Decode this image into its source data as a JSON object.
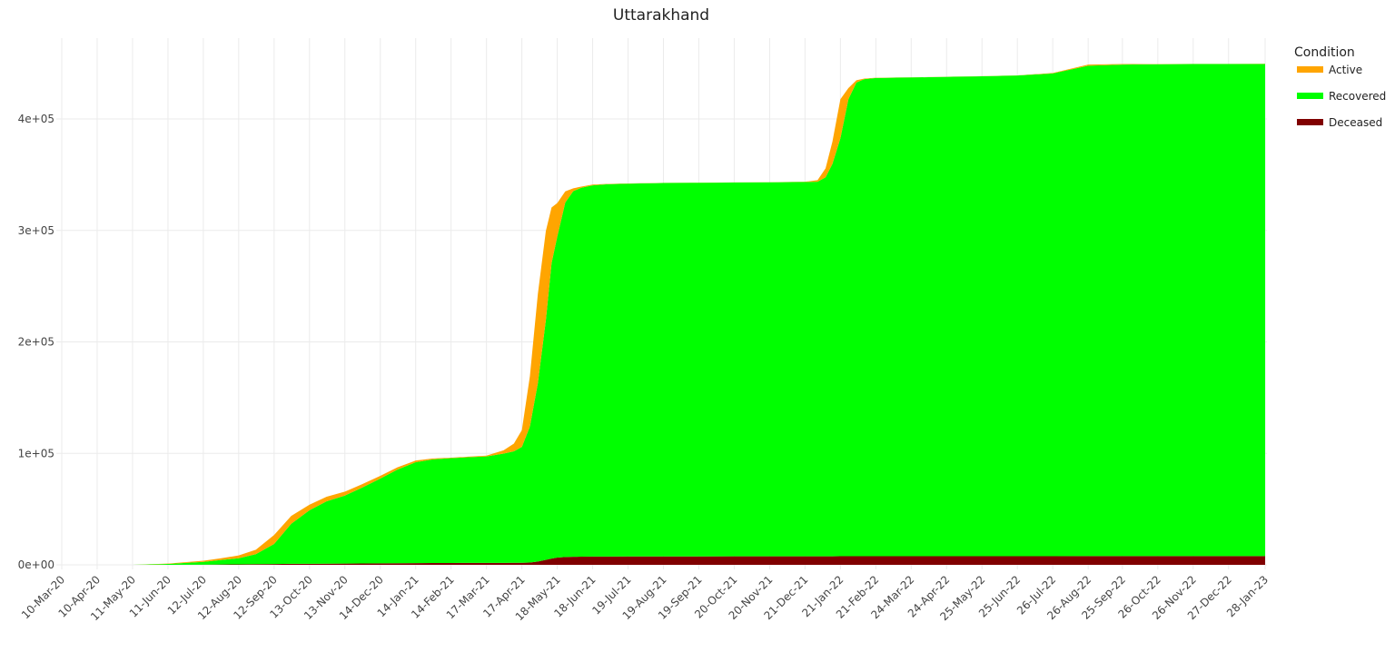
{
  "chart_data": {
    "type": "area",
    "stacked": true,
    "title": "Uttarakhand",
    "xlabel": "",
    "ylabel": "",
    "ylim": [
      0,
      480000
    ],
    "y_ticks": [
      {
        "value": 0,
        "label": "0e+00"
      },
      {
        "value": 100000,
        "label": "1e+05"
      },
      {
        "value": 200000,
        "label": "2e+05"
      },
      {
        "value": 300000,
        "label": "3e+05"
      },
      {
        "value": 400000,
        "label": "4e+05"
      }
    ],
    "x_ticks": [
      "10-Mar-20",
      "10-Apr-20",
      "11-May-20",
      "11-Jun-20",
      "12-Jul-20",
      "12-Aug-20",
      "12-Sep-20",
      "13-Oct-20",
      "13-Nov-20",
      "14-Dec-20",
      "14-Jan-21",
      "14-Feb-21",
      "17-Mar-21",
      "17-Apr-21",
      "18-May-21",
      "18-Jun-21",
      "19-Jul-21",
      "19-Aug-21",
      "19-Sep-21",
      "20-Oct-21",
      "20-Nov-21",
      "21-Dec-21",
      "21-Jan-22",
      "21-Feb-22",
      "24-Mar-22",
      "24-Apr-22",
      "25-May-22",
      "25-Jun-22",
      "26-Jul-22",
      "26-Aug-22",
      "25-Sep-22",
      "26-Oct-22",
      "26-Nov-22",
      "27-Dec-22",
      "28-Jan-23"
    ],
    "grid": true,
    "legend": {
      "title": "Condition",
      "position": "right"
    },
    "x": [
      "10-Mar-20",
      "10-Apr-20",
      "11-May-20",
      "11-Jun-20",
      "12-Jul-20",
      "27-Jul-20",
      "12-Aug-20",
      "27-Aug-20",
      "12-Sep-20",
      "27-Sep-20",
      "13-Oct-20",
      "28-Oct-20",
      "13-Nov-20",
      "28-Nov-20",
      "14-Dec-20",
      "29-Dec-20",
      "14-Jan-21",
      "29-Jan-21",
      "14-Feb-21",
      "1-Mar-21",
      "17-Mar-21",
      "1-Apr-21",
      "10-Apr-21",
      "17-Apr-21",
      "24-Apr-21",
      "1-May-21",
      "8-May-21",
      "13-May-21",
      "18-May-21",
      "25-May-21",
      "1-Jun-21",
      "8-Jun-21",
      "18-Jun-21",
      "1-Jul-21",
      "19-Jul-21",
      "19-Aug-21",
      "19-Sep-21",
      "20-Oct-21",
      "20-Nov-21",
      "21-Dec-21",
      "1-Jan-22",
      "8-Jan-22",
      "14-Jan-22",
      "21-Jan-22",
      "28-Jan-22",
      "4-Feb-22",
      "11-Feb-22",
      "21-Feb-22",
      "24-Mar-22",
      "24-Apr-22",
      "25-May-22",
      "25-Jun-22",
      "26-Jul-22",
      "26-Aug-22",
      "25-Sep-22",
      "26-Oct-22",
      "26-Nov-22",
      "27-Dec-22",
      "28-Jan-23"
    ],
    "series": [
      {
        "name": "Deceased",
        "color": "#800000",
        "values": [
          0,
          0,
          0,
          50,
          150,
          280,
          420,
          580,
          750,
          880,
          950,
          1050,
          1150,
          1250,
          1350,
          1450,
          1550,
          1620,
          1680,
          1720,
          1750,
          1780,
          1800,
          1850,
          2000,
          3000,
          4500,
          5600,
          6500,
          7000,
          7200,
          7300,
          7400,
          7450,
          7500,
          7550,
          7580,
          7600,
          7620,
          7650,
          7660,
          7670,
          7680,
          7690,
          7700,
          7720,
          7730,
          7740,
          7750,
          7760,
          7770,
          7780,
          7790,
          7800,
          7810,
          7820,
          7830,
          7835,
          7840
        ]
      },
      {
        "name": "Recovered",
        "color": "#00ff00",
        "values": [
          0,
          0,
          0,
          800,
          2500,
          4000,
          5500,
          9000,
          18000,
          36000,
          48000,
          56000,
          61000,
          68000,
          76000,
          84000,
          90500,
          93000,
          94000,
          94800,
          95500,
          98000,
          100000,
          104000,
          122000,
          160000,
          215000,
          265000,
          288000,
          318000,
          328000,
          331000,
          333000,
          334000,
          334500,
          335000,
          335200,
          335400,
          335600,
          335800,
          336000,
          340000,
          352000,
          375000,
          410000,
          425000,
          428000,
          429000,
          429500,
          430000,
          430500,
          431200,
          433000,
          440000,
          441000,
          441300,
          441500,
          441500,
          441500
        ]
      },
      {
        "name": "Active",
        "color": "#ffa500",
        "values": [
          0,
          0,
          0,
          300,
          1000,
          1500,
          2500,
          4000,
          8000,
          7000,
          5000,
          4000,
          3500,
          3000,
          2500,
          2000,
          1500,
          800,
          500,
          500,
          700,
          3000,
          7000,
          15000,
          45000,
          80000,
          80000,
          50000,
          30000,
          10000,
          2600,
          1000,
          700,
          300,
          200,
          100,
          100,
          100,
          100,
          200,
          1500,
          8000,
          20000,
          35000,
          10000,
          2000,
          500,
          200,
          100,
          100,
          100,
          100,
          500,
          1000,
          500,
          200,
          100,
          100,
          100
        ]
      }
    ]
  }
}
